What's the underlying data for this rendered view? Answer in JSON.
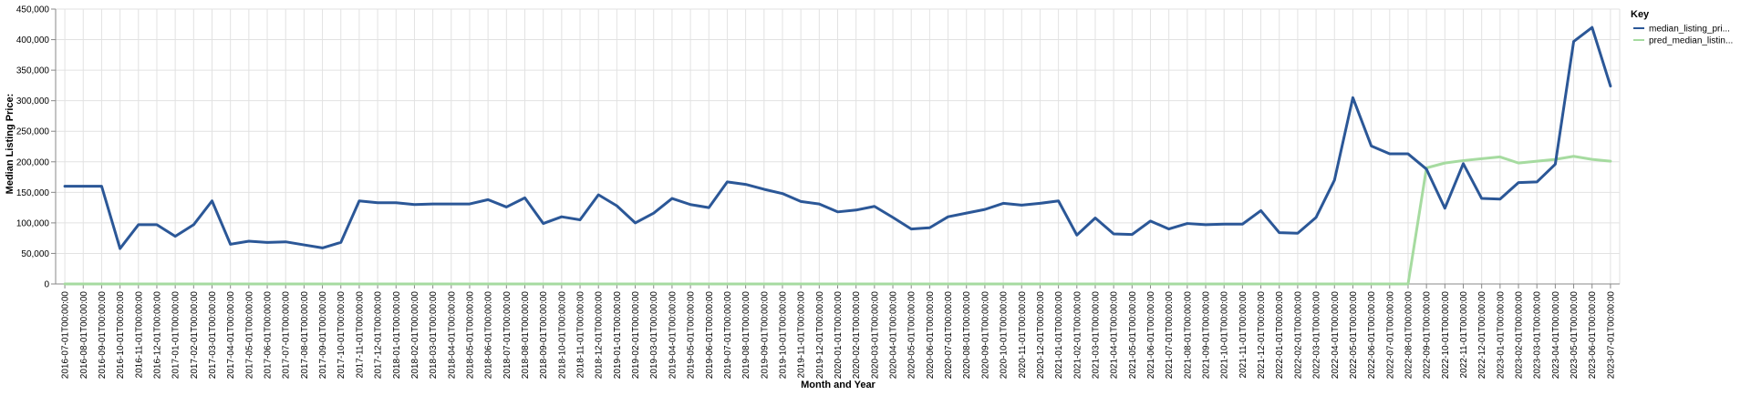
{
  "chart_data": {
    "type": "line",
    "xlabel": "Month and Year",
    "ylabel": "Median Listing Price:",
    "ylim": [
      0,
      450000
    ],
    "yticks": [
      0,
      50000,
      100000,
      150000,
      200000,
      250000,
      300000,
      350000,
      400000,
      450000
    ],
    "grid": true,
    "legend": {
      "title": "Key",
      "placement": "top-right",
      "entries": [
        "median_listing_pri...",
        "pred_median_listin..."
      ]
    },
    "x": [
      "2016-07-01T00:00:00",
      "2016-08-01T00:00:00",
      "2016-09-01T00:00:00",
      "2016-10-01T00:00:00",
      "2016-11-01T00:00:00",
      "2016-12-01T00:00:00",
      "2017-01-01T00:00:00",
      "2017-02-01T00:00:00",
      "2017-03-01T00:00:00",
      "2017-04-01T00:00:00",
      "2017-05-01T00:00:00",
      "2017-06-01T00:00:00",
      "2017-07-01T00:00:00",
      "2017-08-01T00:00:00",
      "2017-09-01T00:00:00",
      "2017-10-01T00:00:00",
      "2017-11-01T00:00:00",
      "2017-12-01T00:00:00",
      "2018-01-01T00:00:00",
      "2018-02-01T00:00:00",
      "2018-03-01T00:00:00",
      "2018-04-01T00:00:00",
      "2018-05-01T00:00:00",
      "2018-06-01T00:00:00",
      "2018-07-01T00:00:00",
      "2018-08-01T00:00:00",
      "2018-09-01T00:00:00",
      "2018-10-01T00:00:00",
      "2018-11-01T00:00:00",
      "2018-12-01T00:00:00",
      "2019-01-01T00:00:00",
      "2019-02-01T00:00:00",
      "2019-03-01T00:00:00",
      "2019-04-01T00:00:00",
      "2019-05-01T00:00:00",
      "2019-06-01T00:00:00",
      "2019-07-01T00:00:00",
      "2019-08-01T00:00:00",
      "2019-09-01T00:00:00",
      "2019-10-01T00:00:00",
      "2019-11-01T00:00:00",
      "2019-12-01T00:00:00",
      "2020-01-01T00:00:00",
      "2020-02-01T00:00:00",
      "2020-03-01T00:00:00",
      "2020-04-01T00:00:00",
      "2020-05-01T00:00:00",
      "2020-06-01T00:00:00",
      "2020-07-01T00:00:00",
      "2020-08-01T00:00:00",
      "2020-09-01T00:00:00",
      "2020-10-01T00:00:00",
      "2020-11-01T00:00:00",
      "2020-12-01T00:00:00",
      "2021-01-01T00:00:00",
      "2021-02-01T00:00:00",
      "2021-03-01T00:00:00",
      "2021-04-01T00:00:00",
      "2021-05-01T00:00:00",
      "2021-06-01T00:00:00",
      "2021-07-01T00:00:00",
      "2021-08-01T00:00:00",
      "2021-09-01T00:00:00",
      "2021-10-01T00:00:00",
      "2021-11-01T00:00:00",
      "2021-12-01T00:00:00",
      "2022-01-01T00:00:00",
      "2022-02-01T00:00:00",
      "2022-03-01T00:00:00",
      "2022-04-01T00:00:00",
      "2022-05-01T00:00:00",
      "2022-06-01T00:00:00",
      "2022-07-01T00:00:00",
      "2022-08-01T00:00:00",
      "2022-09-01T00:00:00",
      "2022-10-01T00:00:00",
      "2022-11-01T00:00:00",
      "2022-12-01T00:00:00",
      "2023-01-01T00:00:00",
      "2023-02-01T00:00:00",
      "2023-03-01T00:00:00",
      "2023-04-01T00:00:00",
      "2023-05-01T00:00:00",
      "2023-06-01T00:00:00",
      "2023-07-01T00:00:00"
    ],
    "series": [
      {
        "name": "median_listing_pri...",
        "color": "#2b5797",
        "values": [
          160000,
          160000,
          160000,
          58000,
          97000,
          97000,
          78000,
          97000,
          136000,
          65000,
          70000,
          68000,
          69000,
          64000,
          59000,
          68000,
          136000,
          133000,
          133000,
          130000,
          131000,
          131000,
          131000,
          138000,
          126000,
          141000,
          99000,
          110000,
          105000,
          146000,
          128000,
          100000,
          116000,
          140000,
          130000,
          125000,
          167000,
          163000,
          155000,
          148000,
          135000,
          131000,
          118000,
          121000,
          127000,
          109000,
          90000,
          92000,
          110000,
          116000,
          122000,
          132000,
          129000,
          132000,
          136000,
          80000,
          108000,
          82000,
          81000,
          103000,
          90000,
          99000,
          97000,
          98000,
          98000,
          120000,
          84000,
          83000,
          109000,
          170000,
          305000,
          226000,
          213000,
          213000,
          188000,
          124000,
          197000,
          140000,
          139000,
          166000,
          167000,
          196000,
          397000,
          420000,
          324000
        ]
      },
      {
        "name": "pred_median_listin...",
        "color": "#a6dba0",
        "values": [
          0,
          0,
          0,
          0,
          0,
          0,
          0,
          0,
          0,
          0,
          0,
          0,
          0,
          0,
          0,
          0,
          0,
          0,
          0,
          0,
          0,
          0,
          0,
          0,
          0,
          0,
          0,
          0,
          0,
          0,
          0,
          0,
          0,
          0,
          0,
          0,
          0,
          0,
          0,
          0,
          0,
          0,
          0,
          0,
          0,
          0,
          0,
          0,
          0,
          0,
          0,
          0,
          0,
          0,
          0,
          0,
          0,
          0,
          0,
          0,
          0,
          0,
          0,
          0,
          0,
          0,
          0,
          0,
          0,
          0,
          0,
          0,
          0,
          0,
          190000,
          198000,
          202000,
          205000,
          208000,
          198000,
          201000,
          204000,
          209000,
          204000,
          201000
        ]
      }
    ]
  }
}
